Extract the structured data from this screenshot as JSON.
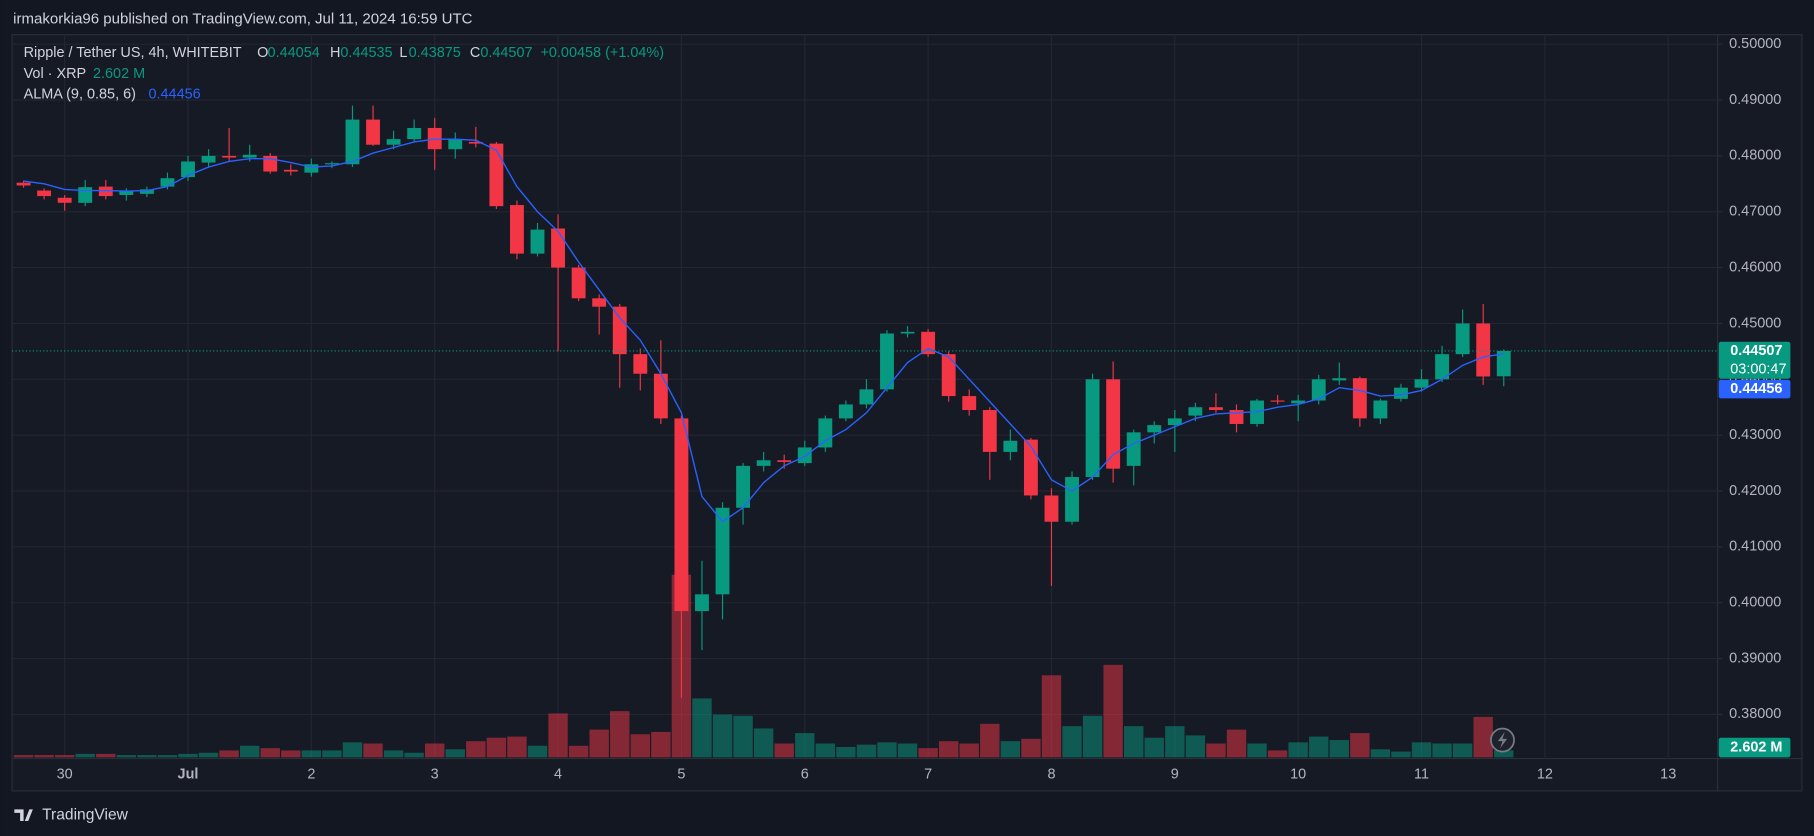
{
  "header": {
    "text": "irmakorkia96 published on TradingView.com, Jul 11, 2024 16:59 UTC"
  },
  "legend": {
    "symbol": "Ripple / Tether US, 4h, WHITEBIT",
    "o_label": "O",
    "o": "0.44054",
    "h_label": "H",
    "h": "0.44535",
    "l_label": "L",
    "l": "0.43875",
    "c_label": "C",
    "c": "0.44507",
    "change": "+0.00458 (+1.04%)",
    "vol_name": "Vol · XRP",
    "vol": "2.602 M",
    "alma_name": "ALMA (9, 0.85, 6)",
    "alma": "0.44456"
  },
  "badges": {
    "last_price": "0.44507",
    "countdown": "03:00:47",
    "alma": "0.44456",
    "volume": "2.602 M"
  },
  "footer": {
    "brand": "TradingView"
  },
  "chart_data": {
    "type": "candlestick",
    "up_color": "#089981",
    "down_color": "#f23645",
    "grid": true,
    "x": [
      0,
      1,
      2,
      3,
      4,
      5,
      6,
      7,
      8,
      9,
      10,
      11,
      12,
      13,
      14,
      15,
      16,
      17,
      18,
      19,
      20,
      21,
      22,
      23,
      24,
      25,
      26,
      27,
      28,
      29,
      30,
      31,
      32,
      33,
      34,
      35,
      36,
      37,
      38,
      39,
      40,
      41,
      42,
      43,
      44,
      45,
      46,
      47,
      48,
      49,
      50,
      51,
      52,
      53,
      54,
      55,
      56,
      57,
      58,
      59,
      60,
      61,
      62,
      63,
      64,
      65,
      66,
      67,
      68,
      69,
      70,
      71,
      72
    ],
    "open": [
      0.4752,
      0.4738,
      0.4725,
      0.4716,
      0.4745,
      0.473,
      0.4732,
      0.4745,
      0.4762,
      0.4788,
      0.48,
      0.4797,
      0.48,
      0.4775,
      0.477,
      0.4785,
      0.4785,
      0.4865,
      0.482,
      0.483,
      0.485,
      0.4812,
      0.4825,
      0.4822,
      0.4712,
      0.4625,
      0.467,
      0.46,
      0.4545,
      0.453,
      0.4445,
      0.441,
      0.433,
      0.3985,
      0.4015,
      0.417,
      0.4245,
      0.4255,
      0.425,
      0.4278,
      0.433,
      0.4355,
      0.4382,
      0.4482,
      0.4485,
      0.4445,
      0.437,
      0.4345,
      0.427,
      0.4292,
      0.4192,
      0.4145,
      0.4225,
      0.44,
      0.4245,
      0.4305,
      0.4318,
      0.4335,
      0.435,
      0.4345,
      0.432,
      0.4362,
      0.4357,
      0.4362,
      0.4398,
      0.4402,
      0.433,
      0.4365,
      0.4385,
      0.44,
      0.4445,
      0.45,
      0.44054
    ],
    "high": [
      0.4756,
      0.4742,
      0.473,
      0.4757,
      0.4757,
      0.4742,
      0.4745,
      0.477,
      0.48,
      0.4812,
      0.485,
      0.482,
      0.4805,
      0.4785,
      0.4795,
      0.479,
      0.489,
      0.489,
      0.4845,
      0.4865,
      0.4868,
      0.4842,
      0.4852,
      0.4825,
      0.472,
      0.468,
      0.4695,
      0.4605,
      0.4552,
      0.4535,
      0.4455,
      0.447,
      0.4335,
      0.4075,
      0.418,
      0.425,
      0.427,
      0.4265,
      0.429,
      0.4335,
      0.4362,
      0.44,
      0.4488,
      0.4495,
      0.449,
      0.445,
      0.4382,
      0.435,
      0.431,
      0.4295,
      0.4205,
      0.4235,
      0.441,
      0.4432,
      0.431,
      0.4325,
      0.4345,
      0.4358,
      0.4375,
      0.4355,
      0.4365,
      0.4372,
      0.4372,
      0.4408,
      0.443,
      0.4405,
      0.4365,
      0.4392,
      0.4418,
      0.446,
      0.4525,
      0.4535,
      0.44535
    ],
    "low": [
      0.4743,
      0.4722,
      0.4702,
      0.471,
      0.4722,
      0.472,
      0.4726,
      0.474,
      0.4755,
      0.478,
      0.479,
      0.479,
      0.4768,
      0.4765,
      0.4763,
      0.4778,
      0.478,
      0.4818,
      0.4812,
      0.4825,
      0.4775,
      0.4795,
      0.4815,
      0.4705,
      0.4615,
      0.462,
      0.445,
      0.454,
      0.448,
      0.4385,
      0.438,
      0.432,
      0.383,
      0.3915,
      0.397,
      0.414,
      0.4235,
      0.424,
      0.4245,
      0.427,
      0.4325,
      0.4348,
      0.4378,
      0.4475,
      0.444,
      0.436,
      0.4335,
      0.422,
      0.4255,
      0.4185,
      0.403,
      0.414,
      0.422,
      0.4215,
      0.421,
      0.4285,
      0.427,
      0.4325,
      0.434,
      0.4305,
      0.4315,
      0.4355,
      0.4325,
      0.4355,
      0.439,
      0.4315,
      0.432,
      0.436,
      0.4378,
      0.4395,
      0.444,
      0.439,
      0.43875
    ],
    "close": [
      0.4747,
      0.4728,
      0.4716,
      0.4744,
      0.4728,
      0.4738,
      0.474,
      0.476,
      0.479,
      0.48,
      0.4797,
      0.4802,
      0.4772,
      0.4772,
      0.4785,
      0.4787,
      0.4865,
      0.482,
      0.483,
      0.485,
      0.4812,
      0.483,
      0.4822,
      0.471,
      0.4625,
      0.4668,
      0.46,
      0.4545,
      0.453,
      0.4445,
      0.441,
      0.433,
      0.3985,
      0.4015,
      0.417,
      0.4245,
      0.4255,
      0.4252,
      0.4278,
      0.433,
      0.4355,
      0.4382,
      0.4482,
      0.4485,
      0.4445,
      0.437,
      0.4345,
      0.427,
      0.429,
      0.4192,
      0.4145,
      0.4225,
      0.44,
      0.424,
      0.4305,
      0.4318,
      0.433,
      0.435,
      0.4345,
      0.432,
      0.4362,
      0.436,
      0.4362,
      0.44,
      0.4402,
      0.433,
      0.4362,
      0.4385,
      0.44,
      0.4445,
      0.45,
      0.4405,
      0.44507
    ],
    "volume": [
      0.87,
      0.87,
      0.87,
      1.3,
      1.3,
      0.87,
      0.87,
      0.87,
      1.3,
      1.73,
      2.6,
      4.33,
      3.46,
      2.6,
      2.6,
      2.6,
      5.63,
      5.2,
      2.6,
      1.73,
      5.2,
      3.03,
      6.06,
      7.36,
      7.79,
      4.33,
      16.45,
      4.33,
      10.39,
      17.32,
      8.66,
      9.53,
      68.41,
      22.08,
      16.02,
      15.59,
      10.83,
      5.2,
      9.09,
      5.2,
      3.9,
      4.76,
      5.63,
      5.2,
      3.46,
      6.06,
      5.2,
      12.56,
      6.06,
      6.93,
      30.74,
      11.69,
      15.59,
      34.64,
      11.69,
      7.36,
      11.69,
      8.23,
      5.2,
      10.39,
      5.2,
      2.6,
      5.63,
      7.79,
      6.5,
      9.09,
      3.03,
      2.17,
      5.63,
      5.2,
      5.2,
      15.16,
      2.602
    ],
    "alma": {
      "color": "#2962ff",
      "values": [
        0.4755,
        0.475,
        0.474,
        0.4738,
        0.4738,
        0.4737,
        0.4738,
        0.4745,
        0.4765,
        0.478,
        0.479,
        0.4795,
        0.4795,
        0.4788,
        0.478,
        0.4782,
        0.479,
        0.4805,
        0.4815,
        0.4825,
        0.483,
        0.483,
        0.4828,
        0.481,
        0.4745,
        0.47,
        0.4665,
        0.461,
        0.456,
        0.451,
        0.447,
        0.441,
        0.434,
        0.419,
        0.4145,
        0.417,
        0.4215,
        0.4245,
        0.4262,
        0.429,
        0.431,
        0.434,
        0.4385,
        0.443,
        0.4455,
        0.444,
        0.44,
        0.436,
        0.432,
        0.428,
        0.422,
        0.42,
        0.4225,
        0.4265,
        0.4285,
        0.43,
        0.4315,
        0.433,
        0.4338,
        0.434,
        0.4342,
        0.435,
        0.4355,
        0.4365,
        0.4385,
        0.438,
        0.437,
        0.4372,
        0.438,
        0.44,
        0.4425,
        0.444,
        0.44456
      ]
    },
    "xlim": [
      -0.56,
      82.4
    ],
    "xticks": [
      {
        "value": 2,
        "label": "30"
      },
      {
        "value": 8,
        "label": "Jul"
      },
      {
        "value": 14,
        "label": "2"
      },
      {
        "value": 20,
        "label": "3"
      },
      {
        "value": 26,
        "label": "4"
      },
      {
        "value": 32,
        "label": "5"
      },
      {
        "value": 38,
        "label": "6"
      },
      {
        "value": 44,
        "label": "7"
      },
      {
        "value": 50,
        "label": "8"
      },
      {
        "value": 56,
        "label": "9"
      },
      {
        "value": 62,
        "label": "10"
      },
      {
        "value": 68,
        "label": "11"
      },
      {
        "value": 74,
        "label": "12"
      },
      {
        "value": 80,
        "label": "13"
      }
    ],
    "ylim": [
      0.3721,
      0.5017
    ],
    "yticks": [
      {
        "value": 0.5,
        "label": "0.50000"
      },
      {
        "value": 0.49,
        "label": "0.49000"
      },
      {
        "value": 0.48,
        "label": "0.48000"
      },
      {
        "value": 0.47,
        "label": "0.47000"
      },
      {
        "value": 0.46,
        "label": "0.46000"
      },
      {
        "value": 0.45,
        "label": "0.45000"
      },
      {
        "value": 0.44,
        "label": "0.44000"
      },
      {
        "value": 0.43,
        "label": "0.43000"
      },
      {
        "value": 0.42,
        "label": "0.42000"
      },
      {
        "value": 0.41,
        "label": "0.41000"
      },
      {
        "value": 0.4,
        "label": "0.40000"
      },
      {
        "value": 0.39,
        "label": "0.39000"
      },
      {
        "value": 0.38,
        "label": "0.38000"
      }
    ]
  }
}
